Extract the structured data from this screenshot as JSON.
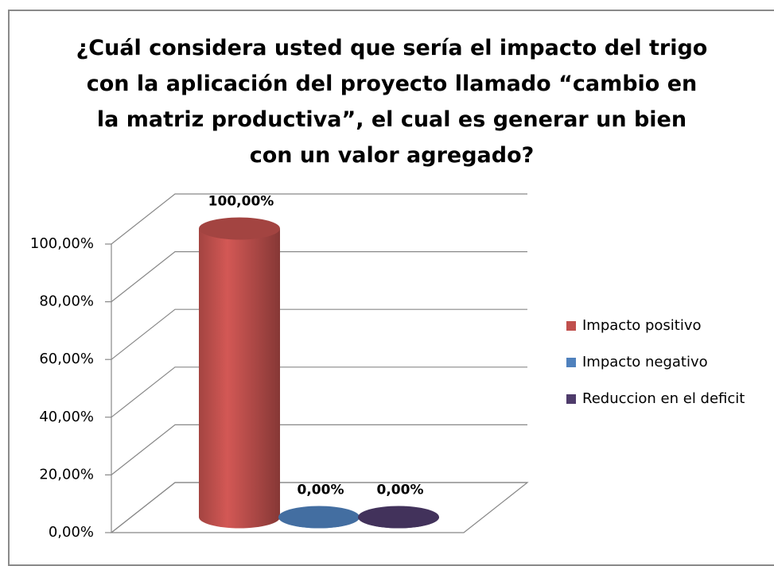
{
  "chart_data": {
    "type": "bar",
    "title": "¿Cuál considera usted que sería el impacto del trigo con la aplicación del proyecto llamado “cambio en la matriz productiva”, el cual es generar un bien con un valor agregado?",
    "categories": [
      null
    ],
    "series": [
      {
        "name": "Impacto positivo",
        "color": "#c0504d",
        "values": [
          100
        ],
        "value_labels": [
          "100,00%"
        ]
      },
      {
        "name": "Impacto negativo",
        "color": "#4f81bd",
        "values": [
          0
        ],
        "value_labels": [
          "0,00%"
        ]
      },
      {
        "name": "Reduccion en el deficit",
        "color": "#4e3b6b",
        "values": [
          0
        ],
        "value_labels": [
          "0,00%"
        ]
      }
    ],
    "ylim": [
      0,
      100
    ],
    "yticks": [
      {
        "value": 0,
        "label": "0,00%"
      },
      {
        "value": 20,
        "label": "20,00%"
      },
      {
        "value": 40,
        "label": "40,00%"
      },
      {
        "value": 60,
        "label": "60,00%"
      },
      {
        "value": 80,
        "label": "80,00%"
      },
      {
        "value": 100,
        "label": "100,00%"
      }
    ],
    "grid": true,
    "legend": "right"
  }
}
